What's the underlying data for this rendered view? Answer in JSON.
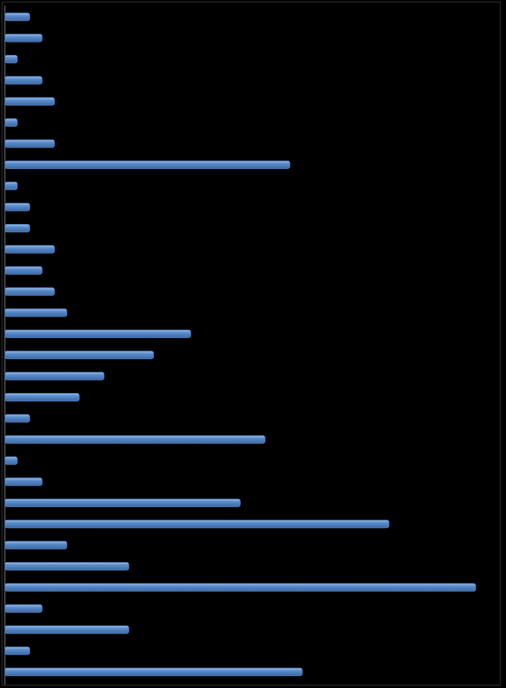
{
  "chart_data": {
    "type": "bar",
    "orientation": "horizontal",
    "categories": [
      null,
      null,
      null,
      null,
      null,
      null,
      null,
      null,
      null,
      null,
      null,
      null,
      null,
      null,
      null,
      null,
      null,
      null,
      null,
      null,
      null,
      null,
      null,
      null,
      null,
      null,
      null,
      null,
      null,
      null,
      null,
      null
    ],
    "values": [
      2,
      3,
      1,
      3,
      4,
      1,
      4,
      23,
      1,
      2,
      2,
      4,
      3,
      4,
      5,
      15,
      12,
      8,
      6,
      2,
      21,
      1,
      3,
      19,
      31,
      5,
      10,
      38,
      3,
      10,
      2,
      24
    ],
    "color": "#4f81bd",
    "xlim": [
      0,
      40
    ]
  }
}
